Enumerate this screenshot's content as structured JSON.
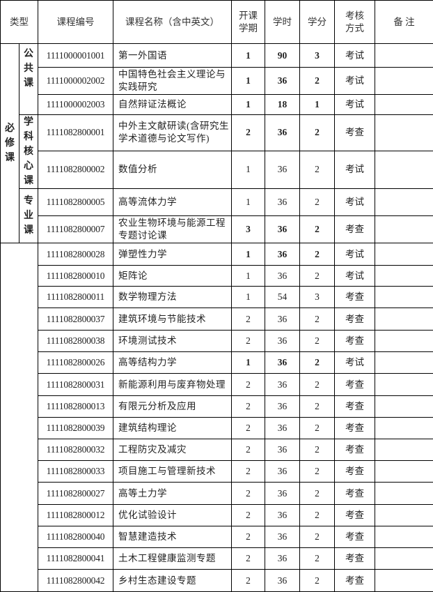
{
  "headers": {
    "type": "类型",
    "code": "课程编号",
    "name": "课程名称（含中英文）",
    "term": "开课学期",
    "hours": "学时",
    "credits": "学分",
    "exam": "考核方式",
    "remarks": "备 注"
  },
  "groups": {
    "required": "必修课",
    "public": "公共课",
    "core": "学科核心课",
    "major": "专业课"
  },
  "rows": [
    {
      "code": "1111000001001",
      "name": "第一外国语",
      "term": "1",
      "hours": "90",
      "credits": "3",
      "exam": "考试",
      "remarks": ""
    },
    {
      "code": "1111000002002",
      "name": "中国特色社会主义理论与实践研究",
      "term": "1",
      "hours": "36",
      "credits": "2",
      "exam": "考试",
      "remarks": ""
    },
    {
      "code": "1111000002003",
      "name": "自然辩证法概论",
      "term": "1",
      "hours": "18",
      "credits": "1",
      "exam": "考试",
      "remarks": ""
    },
    {
      "code": "1111082800001",
      "name": "中外主文献研读(含研究生学术道德与论文写作)",
      "term": "2",
      "hours": "36",
      "credits": "2",
      "exam": "考查",
      "remarks": ""
    },
    {
      "code": "1111082800002",
      "name": "数值分析",
      "term": "1",
      "hours": "36",
      "credits": "2",
      "exam": "考试",
      "remarks": ""
    },
    {
      "code": "1111082800005",
      "name": "高等流体力学",
      "term": "1",
      "hours": "36",
      "credits": "2",
      "exam": "考试",
      "remarks": ""
    },
    {
      "code": "1111082800007",
      "name": "农业生物环境与能源工程专题讨论课",
      "term": "3",
      "hours": "36",
      "credits": "2",
      "exam": "考查",
      "remarks": ""
    },
    {
      "code": "1111082800028",
      "name": "弹塑性力学",
      "term": "1",
      "hours": "36",
      "credits": "2",
      "exam": "考试",
      "remarks": ""
    },
    {
      "code": "1111082800010",
      "name": "矩阵论",
      "term": "1",
      "hours": "36",
      "credits": "2",
      "exam": "考试",
      "remarks": ""
    },
    {
      "code": "1111082800011",
      "name": "数学物理方法",
      "term": "1",
      "hours": "54",
      "credits": "3",
      "exam": "考查",
      "remarks": ""
    },
    {
      "code": "1111082800037",
      "name": "建筑环境与节能技术",
      "term": "2",
      "hours": "36",
      "credits": "2",
      "exam": "考查",
      "remarks": ""
    },
    {
      "code": "1111082800038",
      "name": "环境测试技术",
      "term": "2",
      "hours": "36",
      "credits": "2",
      "exam": "考查",
      "remarks": ""
    },
    {
      "code": "1111082800026",
      "name": "高等结构力学",
      "term": "1",
      "hours": "36",
      "credits": "2",
      "exam": "考试",
      "remarks": ""
    },
    {
      "code": "1111082800031",
      "name": "新能源利用与废弃物处理",
      "term": "2",
      "hours": "36",
      "credits": "2",
      "exam": "考查",
      "remarks": ""
    },
    {
      "code": "1111082800013",
      "name": "有限元分析及应用",
      "term": "2",
      "hours": "36",
      "credits": "2",
      "exam": "考查",
      "remarks": ""
    },
    {
      "code": "1111082800039",
      "name": "建筑结构理论",
      "term": "2",
      "hours": "36",
      "credits": "2",
      "exam": "考查",
      "remarks": ""
    },
    {
      "code": "1111082800032",
      "name": "工程防灾及减灾",
      "term": "2",
      "hours": "36",
      "credits": "2",
      "exam": "考查",
      "remarks": ""
    },
    {
      "code": "1111082800033",
      "name": "项目施工与管理新技术",
      "term": "2",
      "hours": "36",
      "credits": "2",
      "exam": "考查",
      "remarks": ""
    },
    {
      "code": "1111082800027",
      "name": "高等土力学",
      "term": "2",
      "hours": "36",
      "credits": "2",
      "exam": "考查",
      "remarks": ""
    },
    {
      "code": "1111082800012",
      "name": "优化试验设计",
      "term": "2",
      "hours": "36",
      "credits": "2",
      "exam": "考查",
      "remarks": ""
    },
    {
      "code": "1111082800040",
      "name": "智慧建造技术",
      "term": "2",
      "hours": "36",
      "credits": "2",
      "exam": "考查",
      "remarks": ""
    },
    {
      "code": "1111082800041",
      "name": "土木工程健康监测专题",
      "term": "2",
      "hours": "36",
      "credits": "2",
      "exam": "考查",
      "remarks": ""
    },
    {
      "code": "1111082800042",
      "name": "乡村生态建设专题",
      "term": "2",
      "hours": "36",
      "credits": "2",
      "exam": "考查",
      "remarks": ""
    }
  ]
}
